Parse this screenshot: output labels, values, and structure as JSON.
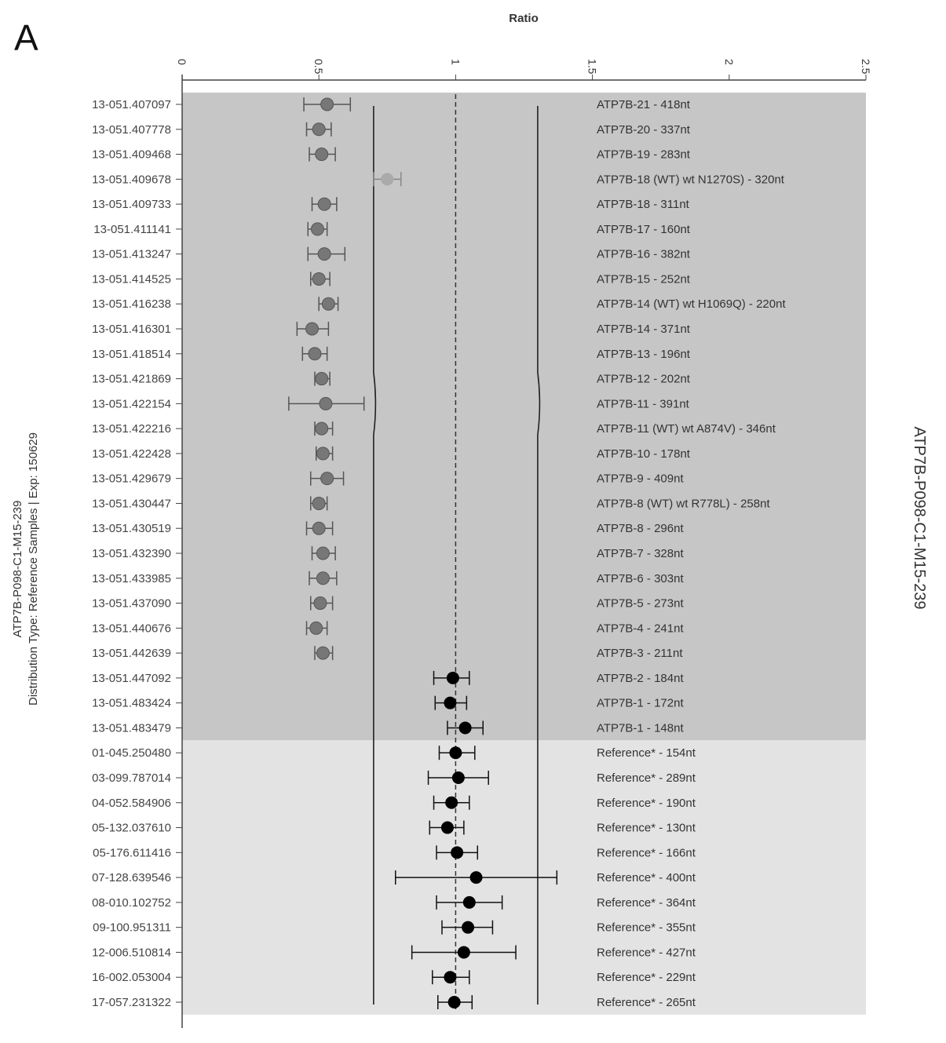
{
  "panel_label": "A",
  "right_title": "ATP7B-P098-C1-M15-239",
  "left_title_line1": "ATP7B-P098-C1-M15-239",
  "left_title_line2": "Distribution Type: Reference Samples | Exp: 150629",
  "chart_data": {
    "type": "scatter",
    "orientation": "horizontal",
    "xlabel": "Ratio",
    "xlim": [
      0,
      2.5
    ],
    "xticks": [
      "0",
      "0.5",
      "1",
      "1.5",
      "2",
      "2.5"
    ],
    "reference_line": 1.0,
    "threshold_lines": [
      0.7,
      1.3
    ],
    "colors": {
      "target_band": "#c6c6c6",
      "reference_band": "#e3e3e3",
      "target_point": "#777777",
      "reference_point": "#000000"
    },
    "rows": [
      {
        "id": "13-051.407097",
        "probe": "ATP7B-21 - 418nt",
        "group": "target",
        "value": 0.53,
        "low": 0.445,
        "high": 0.615
      },
      {
        "id": "13-051.407778",
        "probe": "ATP7B-20 - 337nt",
        "group": "target",
        "value": 0.5,
        "low": 0.455,
        "high": 0.545
      },
      {
        "id": "13-051.409468",
        "probe": "ATP7B-19 - 283nt",
        "group": "target",
        "value": 0.51,
        "low": 0.465,
        "high": 0.56
      },
      {
        "id": "13-051.409678",
        "probe": "ATP7B-18 (WT) wt N1270S) - 320nt",
        "group": "wt",
        "value": 0.75,
        "low": 0.7,
        "high": 0.8
      },
      {
        "id": "13-051.409733",
        "probe": "ATP7B-18 - 311nt",
        "group": "target",
        "value": 0.52,
        "low": 0.475,
        "high": 0.565
      },
      {
        "id": "13-051.411141",
        "probe": "ATP7B-17 - 160nt",
        "group": "target",
        "value": 0.495,
        "low": 0.46,
        "high": 0.53
      },
      {
        "id": "13-051.413247",
        "probe": "ATP7B-16 - 382nt",
        "group": "target",
        "value": 0.52,
        "low": 0.46,
        "high": 0.595
      },
      {
        "id": "13-051.414525",
        "probe": "ATP7B-15 - 252nt",
        "group": "target",
        "value": 0.5,
        "low": 0.47,
        "high": 0.54
      },
      {
        "id": "13-051.416238",
        "probe": "ATP7B-14 (WT) wt H1069Q) - 220nt",
        "group": "target",
        "value": 0.535,
        "low": 0.5,
        "high": 0.57
      },
      {
        "id": "13-051.416301",
        "probe": "ATP7B-14 - 371nt",
        "group": "target",
        "value": 0.475,
        "low": 0.42,
        "high": 0.535
      },
      {
        "id": "13-051.418514",
        "probe": "ATP7B-13 - 196nt",
        "group": "target",
        "value": 0.485,
        "low": 0.44,
        "high": 0.53
      },
      {
        "id": "13-051.421869",
        "probe": "ATP7B-12 - 202nt",
        "group": "target",
        "value": 0.51,
        "low": 0.485,
        "high": 0.54
      },
      {
        "id": "13-051.422154",
        "probe": "ATP7B-11 - 391nt",
        "group": "target",
        "value": 0.525,
        "low": 0.39,
        "high": 0.665
      },
      {
        "id": "13-051.422216",
        "probe": "ATP7B-11 (WT) wt A874V) - 346nt",
        "group": "target",
        "value": 0.51,
        "low": 0.485,
        "high": 0.55
      },
      {
        "id": "13-051.422428",
        "probe": "ATP7B-10 - 178nt",
        "group": "target",
        "value": 0.515,
        "low": 0.49,
        "high": 0.55
      },
      {
        "id": "13-051.429679",
        "probe": "ATP7B-9 - 409nt",
        "group": "target",
        "value": 0.53,
        "low": 0.47,
        "high": 0.59
      },
      {
        "id": "13-051.430447",
        "probe": "ATP7B-8 (WT) wt R778L) - 258nt",
        "group": "target",
        "value": 0.5,
        "low": 0.47,
        "high": 0.53
      },
      {
        "id": "13-051.430519",
        "probe": "ATP7B-8 - 296nt",
        "group": "target",
        "value": 0.5,
        "low": 0.455,
        "high": 0.55
      },
      {
        "id": "13-051.432390",
        "probe": "ATP7B-7 - 328nt",
        "group": "target",
        "value": 0.515,
        "low": 0.475,
        "high": 0.56
      },
      {
        "id": "13-051.433985",
        "probe": "ATP7B-6 - 303nt",
        "group": "target",
        "value": 0.515,
        "low": 0.465,
        "high": 0.565
      },
      {
        "id": "13-051.437090",
        "probe": "ATP7B-5 - 273nt",
        "group": "target",
        "value": 0.505,
        "low": 0.47,
        "high": 0.55
      },
      {
        "id": "13-051.440676",
        "probe": "ATP7B-4 - 241nt",
        "group": "target",
        "value": 0.49,
        "low": 0.455,
        "high": 0.53
      },
      {
        "id": "13-051.442639",
        "probe": "ATP7B-3 - 211nt",
        "group": "target",
        "value": 0.515,
        "low": 0.485,
        "high": 0.55
      },
      {
        "id": "13-051.447092",
        "probe": "ATP7B-2 - 184nt",
        "group": "normal",
        "value": 0.99,
        "low": 0.92,
        "high": 1.05
      },
      {
        "id": "13-051.483424",
        "probe": "ATP7B-1 - 172nt",
        "group": "normal",
        "value": 0.98,
        "low": 0.925,
        "high": 1.04
      },
      {
        "id": "13-051.483479",
        "probe": "ATP7B-1 - 148nt",
        "group": "normal",
        "value": 1.035,
        "low": 0.97,
        "high": 1.1
      },
      {
        "id": "01-045.250480",
        "probe": "Reference* - 154nt",
        "group": "reference",
        "value": 1.0,
        "low": 0.94,
        "high": 1.07
      },
      {
        "id": "03-099.787014",
        "probe": "Reference* - 289nt",
        "group": "reference",
        "value": 1.01,
        "low": 0.9,
        "high": 1.12
      },
      {
        "id": "04-052.584906",
        "probe": "Reference* - 190nt",
        "group": "reference",
        "value": 0.985,
        "low": 0.92,
        "high": 1.05
      },
      {
        "id": "05-132.037610",
        "probe": "Reference* - 130nt",
        "group": "reference",
        "value": 0.97,
        "low": 0.905,
        "high": 1.03
      },
      {
        "id": "05-176.611416",
        "probe": "Reference* - 166nt",
        "group": "reference",
        "value": 1.005,
        "low": 0.93,
        "high": 1.08
      },
      {
        "id": "07-128.639546",
        "probe": "Reference* - 400nt",
        "group": "reference",
        "value": 1.075,
        "low": 0.78,
        "high": 1.37
      },
      {
        "id": "08-010.102752",
        "probe": "Reference* - 364nt",
        "group": "reference",
        "value": 1.05,
        "low": 0.93,
        "high": 1.17
      },
      {
        "id": "09-100.951311",
        "probe": "Reference* - 355nt",
        "group": "reference",
        "value": 1.045,
        "low": 0.95,
        "high": 1.135
      },
      {
        "id": "12-006.510814",
        "probe": "Reference* - 427nt",
        "group": "reference",
        "value": 1.03,
        "low": 0.84,
        "high": 1.22
      },
      {
        "id": "16-002.053004",
        "probe": "Reference* - 229nt",
        "group": "reference",
        "value": 0.98,
        "low": 0.915,
        "high": 1.05
      },
      {
        "id": "17-057.231322",
        "probe": "Reference* - 265nt",
        "group": "reference",
        "value": 0.995,
        "low": 0.935,
        "high": 1.06
      }
    ]
  }
}
